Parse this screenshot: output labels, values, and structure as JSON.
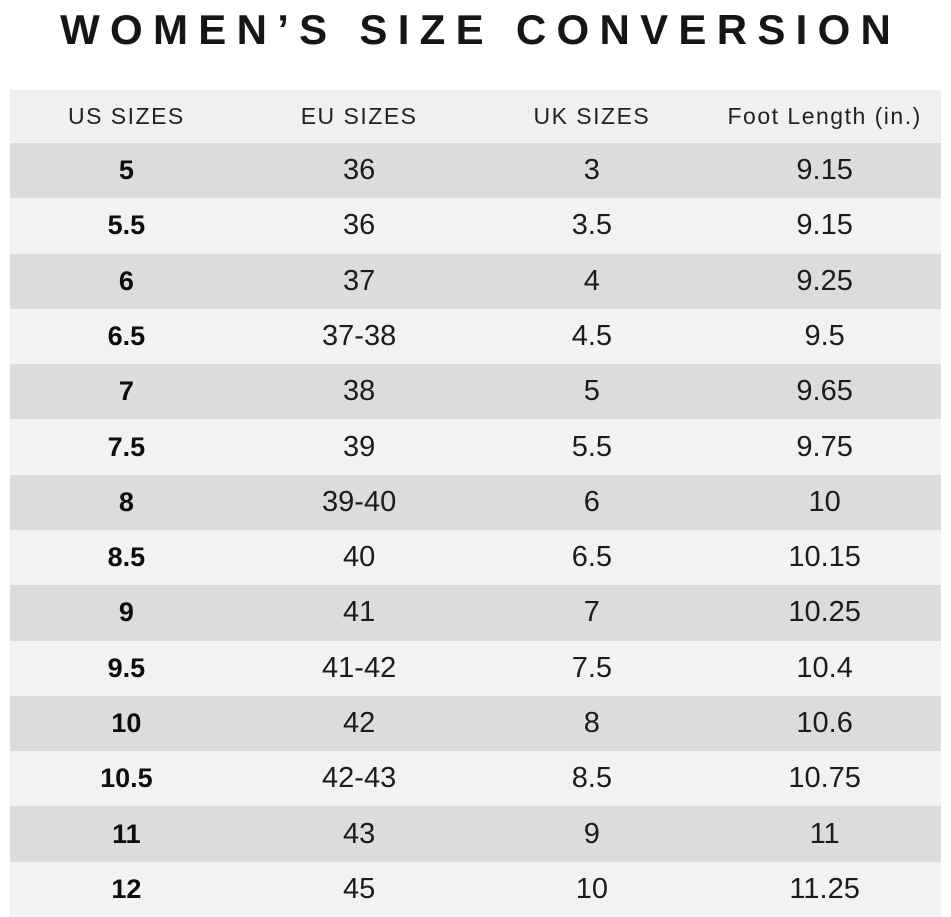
{
  "page": {
    "title": "WOMEN’S SIZE CONVERSION"
  },
  "table": {
    "headers": [
      "US SIZES",
      "EU SIZES",
      "UK SIZES",
      "Foot Length (in.)"
    ],
    "rows": [
      [
        "5",
        "36",
        "3",
        "9.15"
      ],
      [
        "5.5",
        "36",
        "3.5",
        "9.15"
      ],
      [
        "6",
        "37",
        "4",
        "9.25"
      ],
      [
        "6.5",
        "37-38",
        "4.5",
        "9.5"
      ],
      [
        "7",
        "38",
        "5",
        "9.65"
      ],
      [
        "7.5",
        "39",
        "5.5",
        "9.75"
      ],
      [
        "8",
        "39-40",
        "6",
        "10"
      ],
      [
        "8.5",
        "40",
        "6.5",
        "10.15"
      ],
      [
        "9",
        "41",
        "7",
        "10.25"
      ],
      [
        "9.5",
        "41-42",
        "7.5",
        "10.4"
      ],
      [
        "10",
        "42",
        "8",
        "10.6"
      ],
      [
        "10.5",
        "42-43",
        "8.5",
        "10.75"
      ],
      [
        "11",
        "43",
        "9",
        "11"
      ],
      [
        "12",
        "45",
        "10",
        "11.25"
      ]
    ]
  },
  "colors": {
    "header_bg": "#f1f0ef",
    "row_dark": "#dcdcde",
    "row_light": "#f2f2f3",
    "title_text": "#161616",
    "cell_text": "#1c1c1c"
  },
  "chart_data": {
    "type": "table",
    "title": "WOMEN’S SIZE CONVERSION",
    "columns": [
      "US SIZES",
      "EU SIZES",
      "UK SIZES",
      "Foot Length (in.)"
    ],
    "rows": [
      [
        "5",
        "36",
        "3",
        "9.15"
      ],
      [
        "5.5",
        "36",
        "3.5",
        "9.15"
      ],
      [
        "6",
        "37",
        "4",
        "9.25"
      ],
      [
        "6.5",
        "37-38",
        "4.5",
        "9.5"
      ],
      [
        "7",
        "38",
        "5",
        "9.65"
      ],
      [
        "7.5",
        "39",
        "5.5",
        "9.75"
      ],
      [
        "8",
        "39-40",
        "6",
        "10"
      ],
      [
        "8.5",
        "40",
        "6.5",
        "10.15"
      ],
      [
        "9",
        "41",
        "7",
        "10.25"
      ],
      [
        "9.5",
        "41-42",
        "7.5",
        "10.4"
      ],
      [
        "10",
        "42",
        "8",
        "10.6"
      ],
      [
        "10.5",
        "42-43",
        "8.5",
        "10.75"
      ],
      [
        "11",
        "43",
        "9",
        "11"
      ],
      [
        "12",
        "45",
        "10",
        "11.25"
      ]
    ],
    "layout": {
      "striped": true,
      "first_stripe": "dark",
      "bold_column": "US SIZES"
    }
  }
}
